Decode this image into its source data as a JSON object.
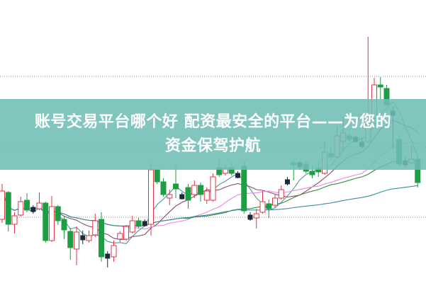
{
  "banner": {
    "line1": "账号交易平台哪个好 配资最安全的平台——为您的",
    "line2": "资金保驾护航",
    "color": "#6ebeb4"
  },
  "chart_data": {
    "type": "candlestick",
    "title": "",
    "xlabel": "",
    "ylabel": "",
    "grid": "dotted horizontal reference lines",
    "reference_levels": [
      29.2,
      19.2,
      9.3
    ],
    "up_color": "#e0344a",
    "down_color": "#1e9e44",
    "ma_periods": [
      5,
      10,
      20,
      30,
      60
    ],
    "ma_colors": [
      "#4a9a9a",
      "#8a4a6a",
      "#e58ae5",
      "#3a8a3a",
      "#3a8fa0"
    ],
    "ohlc": [
      [
        9.0,
        14.0,
        8.5,
        13.0
      ],
      [
        12.8,
        13.0,
        7.3,
        8.3
      ],
      [
        8.3,
        10.0,
        7.0,
        9.5
      ],
      [
        9.6,
        12.2,
        9.4,
        11.5
      ],
      [
        11.7,
        12.7,
        10.0,
        10.3
      ],
      [
        10.4,
        11.0,
        9.8,
        10.4
      ],
      [
        10.5,
        12.8,
        10.3,
        11.3
      ],
      [
        11.3,
        11.5,
        5.7,
        6.0
      ],
      [
        6.0,
        12.3,
        5.8,
        10.8
      ],
      [
        10.8,
        11.0,
        8.2,
        8.8
      ],
      [
        9.0,
        9.5,
        6.2,
        7.5
      ],
      [
        7.3,
        7.8,
        3.3,
        5.0
      ],
      [
        4.8,
        8.0,
        2.5,
        7.2
      ],
      [
        6.4,
        7.4,
        5.5,
        6.4
      ],
      [
        6.0,
        7.4,
        5.7,
        6.7
      ],
      [
        6.8,
        9.8,
        6.5,
        8.8
      ],
      [
        9.0,
        10.0,
        3.0,
        3.7
      ],
      [
        3.8,
        4.5,
        2.2,
        3.8
      ],
      [
        3.7,
        6.0,
        3.0,
        5.3
      ],
      [
        6.2,
        7.3,
        5.8,
        7.0
      ],
      [
        6.2,
        8.2,
        6.0,
        8.0
      ],
      [
        7.2,
        9.5,
        7.0,
        8.8
      ],
      [
        8.8,
        9.2,
        7.8,
        8.0
      ],
      [
        8.4,
        9.0,
        8.0,
        8.4
      ],
      [
        8.3,
        17.0,
        6.7,
        16.0
      ],
      [
        16.0,
        16.2,
        14.0,
        14.3
      ],
      [
        14.3,
        14.8,
        12.2,
        12.5
      ],
      [
        12.0,
        13.2,
        11.0,
        12.5
      ],
      [
        14.0,
        16.4,
        12.0,
        13.3
      ],
      [
        12.2,
        12.8,
        11.8,
        12.2
      ],
      [
        13.5,
        14.0,
        10.5,
        11.7
      ],
      [
        12.5,
        14.5,
        12.0,
        13.8
      ],
      [
        13.8,
        14.2,
        11.5,
        12.5
      ],
      [
        11.7,
        13.5,
        11.2,
        13.0
      ],
      [
        11.7,
        15.5,
        11.5,
        15.0
      ],
      [
        16.3,
        17.5,
        15.0,
        15.3
      ],
      [
        15.5,
        16.8,
        15.2,
        16.2
      ],
      [
        16.3,
        17.0,
        15.2,
        15.5
      ],
      [
        15.2,
        15.8,
        14.8,
        15.2
      ],
      [
        16.5,
        17.2,
        9.8,
        10.2
      ],
      [
        9.3,
        10.0,
        8.8,
        9.3
      ],
      [
        9.2,
        10.5,
        7.7,
        9.8
      ],
      [
        10.0,
        13.0,
        9.8,
        11.5
      ],
      [
        11.2,
        11.8,
        9.2,
        10.5
      ],
      [
        11.0,
        12.5,
        10.7,
        12.0
      ],
      [
        12.0,
        13.8,
        11.8,
        13.2
      ],
      [
        14.3,
        15.0,
        13.8,
        14.3
      ],
      [
        17.0,
        17.5,
        14.5,
        16.7
      ],
      [
        16.7,
        17.2,
        16.0,
        16.7
      ],
      [
        16.8,
        17.2,
        15.5,
        15.8
      ],
      [
        15.8,
        16.5,
        14.8,
        15.3
      ],
      [
        16.2,
        17.0,
        15.0,
        15.7
      ],
      [
        15.5,
        20.0,
        15.3,
        18.5
      ],
      [
        18.3,
        19.0,
        17.5,
        17.8
      ],
      [
        17.8,
        22.2,
        17.6,
        20.8
      ],
      [
        20.0,
        23.5,
        18.5,
        21.2
      ],
      [
        20.8,
        21.2,
        20.0,
        20.3
      ],
      [
        20.3,
        20.8,
        19.8,
        20.3
      ],
      [
        19.6,
        20.5,
        19.0,
        19.6
      ],
      [
        20.0,
        34.8,
        19.7,
        23.2
      ],
      [
        23.3,
        29.0,
        23.0,
        28.0
      ],
      [
        28.0,
        29.1,
        26.0,
        27.7
      ],
      [
        27.5,
        28.0,
        25.0,
        25.2
      ],
      [
        24.0,
        25.0,
        19.0,
        24.0
      ],
      [
        20.3,
        21.0,
        16.5,
        16.8
      ],
      [
        17.0,
        17.8,
        16.4,
        17.0
      ],
      [
        17.0,
        19.5,
        16.8,
        17.5
      ],
      [
        17.5,
        18.0,
        13.5,
        14.2
      ]
    ]
  }
}
